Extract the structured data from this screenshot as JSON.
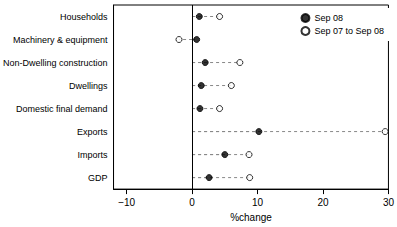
{
  "chart_data": {
    "type": "dot",
    "orientation": "horizontal",
    "x_label": "%change",
    "categories": [
      "Households",
      "Machinery & equipment",
      "Non-Dwelling construction",
      "Dwellings",
      "Domestic final demand",
      "Exports",
      "Imports",
      "GDP"
    ],
    "series": [
      {
        "name": "Sep 08",
        "color": "#000000",
        "marker": "filled",
        "line_style": "dashed",
        "values": [
          1.1,
          0.7,
          2.0,
          1.4,
          1.2,
          10.2,
          5.0,
          2.6
        ]
      },
      {
        "name": "Sep 07 to Sep 08",
        "color": "#000000",
        "marker": "open",
        "line_style": "dashed",
        "values": [
          4.2,
          -2.0,
          7.3,
          6.0,
          4.2,
          29.5,
          8.7,
          8.8
        ]
      }
    ],
    "xlim": [
      -12,
      30
    ],
    "xticks": [
      -10,
      0,
      10,
      20,
      30
    ],
    "grid": false,
    "legend": "upper right"
  }
}
